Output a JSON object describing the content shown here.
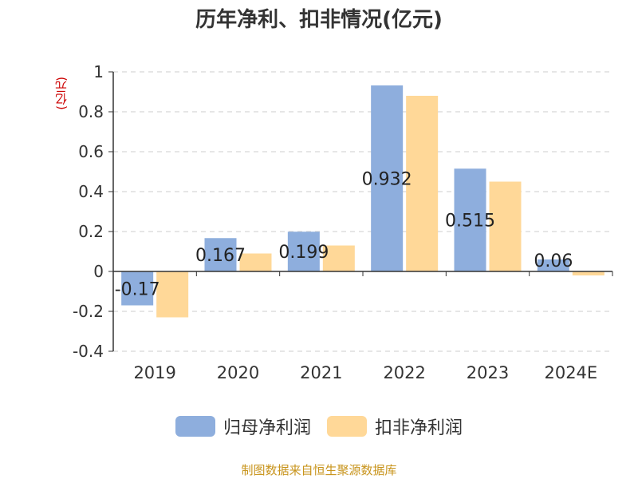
{
  "chart_data": {
    "type": "bar",
    "title": "历年净利、扣非情况(亿元)",
    "ylabel": "(亿元)",
    "categories": [
      "2019",
      "2020",
      "2021",
      "2022",
      "2023",
      "2024E"
    ],
    "series": [
      {
        "name": "归母净利润",
        "color": "#8eaedd",
        "values": [
          -0.17,
          0.167,
          0.199,
          0.932,
          0.515,
          0.06
        ],
        "labels": [
          "-0.17",
          "0.167",
          "0.199",
          "0.932",
          "0.515",
          "0.06"
        ]
      },
      {
        "name": "扣非净利润",
        "color": "#ffd898",
        "values": [
          -0.23,
          0.09,
          0.13,
          0.88,
          0.45,
          -0.02
        ]
      }
    ],
    "ylim": [
      -0.4,
      1
    ],
    "yticks": [
      -0.4,
      -0.2,
      0,
      0.2,
      0.4,
      0.6,
      0.8,
      1
    ],
    "ytick_labels": [
      "-0.4",
      "-0.2",
      "0",
      "0.2",
      "0.4",
      "0.6",
      "0.8",
      "1"
    ],
    "grid": true,
    "legend_position": "bottom"
  },
  "source_note": "制图数据来自恒生聚源数据库"
}
